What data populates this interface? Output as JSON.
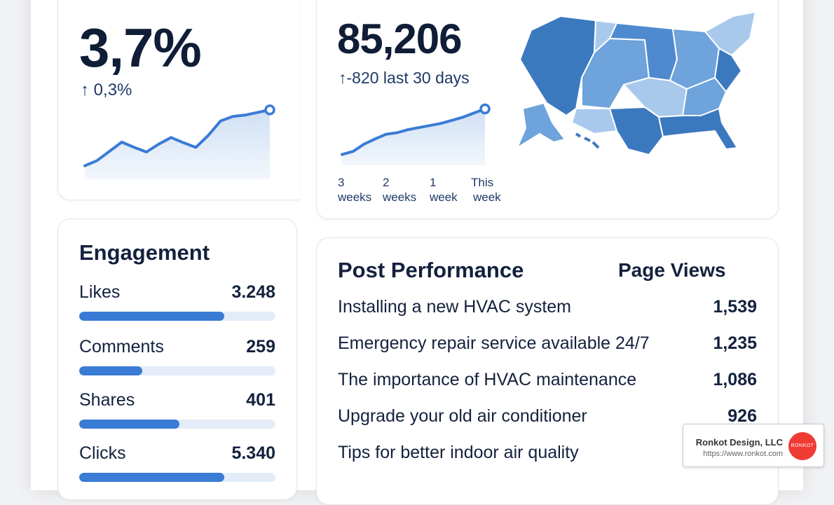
{
  "engagement_rate": {
    "value": "3,7%",
    "delta": "0,3%",
    "trend": [
      0.12,
      0.2,
      0.34,
      0.48,
      0.4,
      0.33,
      0.45,
      0.55,
      0.47,
      0.4,
      0.58,
      0.8,
      0.87,
      0.89,
      0.93,
      0.97
    ]
  },
  "followers": {
    "value": "85,206",
    "delta": "-820 last 30 days",
    "trend": [
      0.1,
      0.16,
      0.3,
      0.4,
      0.49,
      0.52,
      0.58,
      0.62,
      0.66,
      0.7,
      0.76,
      0.82,
      0.9,
      0.98
    ],
    "week_labels": [
      {
        "line1": "3",
        "line2": "weeks"
      },
      {
        "line1": "2",
        "line2": "weeks"
      },
      {
        "line1": "1",
        "line2": "week"
      },
      {
        "line1": "This",
        "line2": "week"
      }
    ]
  },
  "engagement": {
    "title": "Engagement",
    "items": [
      {
        "label": "Likes",
        "value": "3.248",
        "fill": 0.74
      },
      {
        "label": "Comments",
        "value": "259",
        "fill": 0.32
      },
      {
        "label": "Shares",
        "value": "401",
        "fill": 0.51
      },
      {
        "label": "Clicks",
        "value": "5.340",
        "fill": 0.74
      }
    ]
  },
  "post_performance": {
    "title": "Post Performance",
    "column_header": "Page Views",
    "rows": [
      {
        "name": "Installing a new HVAC system",
        "views": "1,539"
      },
      {
        "name": "Emergency repair service available 24/7",
        "views": "1,235"
      },
      {
        "name": "The importance of HVAC maintenance",
        "views": "1,086"
      },
      {
        "name": "Upgrade your old air conditioner",
        "views": "926"
      },
      {
        "name": "Tips for better indoor air quality",
        "views": ""
      }
    ]
  },
  "badge": {
    "company": "Ronkot Design, LLC",
    "url": "https://www.ronkot.com",
    "logo_text": "RONKOT"
  },
  "colors": {
    "accent": "#3a7bd5",
    "text": "#14213d",
    "map_light": "#a9c9ec",
    "map_mid": "#6ea3dc",
    "map_dark": "#3b79bf"
  }
}
